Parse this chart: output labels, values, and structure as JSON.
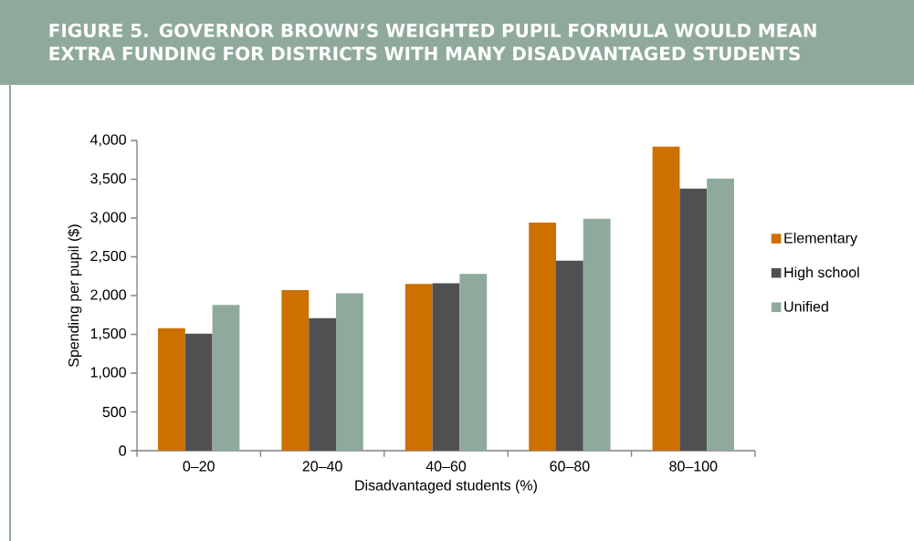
{
  "chart_data": {
    "type": "bar",
    "title": "FIGURE 5. GOVERNOR BROWN’S WEIGHTED PUPIL FORMULA WOULD MEAN EXTRA FUNDING FOR DISTRICTS WITH MANY DISADVANTAGED STUDENTS",
    "xlabel": "Disadvantaged students (%)",
    "ylabel": "Spending per pupil ($)",
    "categories": [
      "0–20",
      "20–40",
      "40–60",
      "60–80",
      "80–100"
    ],
    "series": [
      {
        "name": "Elementary",
        "color": "#cc7000",
        "values": [
          1580,
          2070,
          2150,
          2940,
          3920
        ]
      },
      {
        "name": "High school",
        "color": "#505052",
        "values": [
          1510,
          1710,
          2160,
          2450,
          3380
        ]
      },
      {
        "name": "Unified",
        "color": "#8faa9c",
        "values": [
          1880,
          2030,
          2280,
          2990,
          3510
        ]
      }
    ],
    "ylim": [
      0,
      4000
    ],
    "yticks": [
      0,
      500,
      {
        "value": 1000,
        "label": "1,000"
      },
      {
        "value": 1500,
        "label": "1,500"
      },
      {
        "value": 2000,
        "label": "2,000"
      },
      {
        "value": 2500,
        "label": "2,500"
      },
      {
        "value": 3000,
        "label": "3,000"
      },
      {
        "value": 3500,
        "label": "3,500"
      },
      {
        "value": 4000,
        "label": "4,000"
      }
    ],
    "grid": false,
    "legend": "right"
  }
}
